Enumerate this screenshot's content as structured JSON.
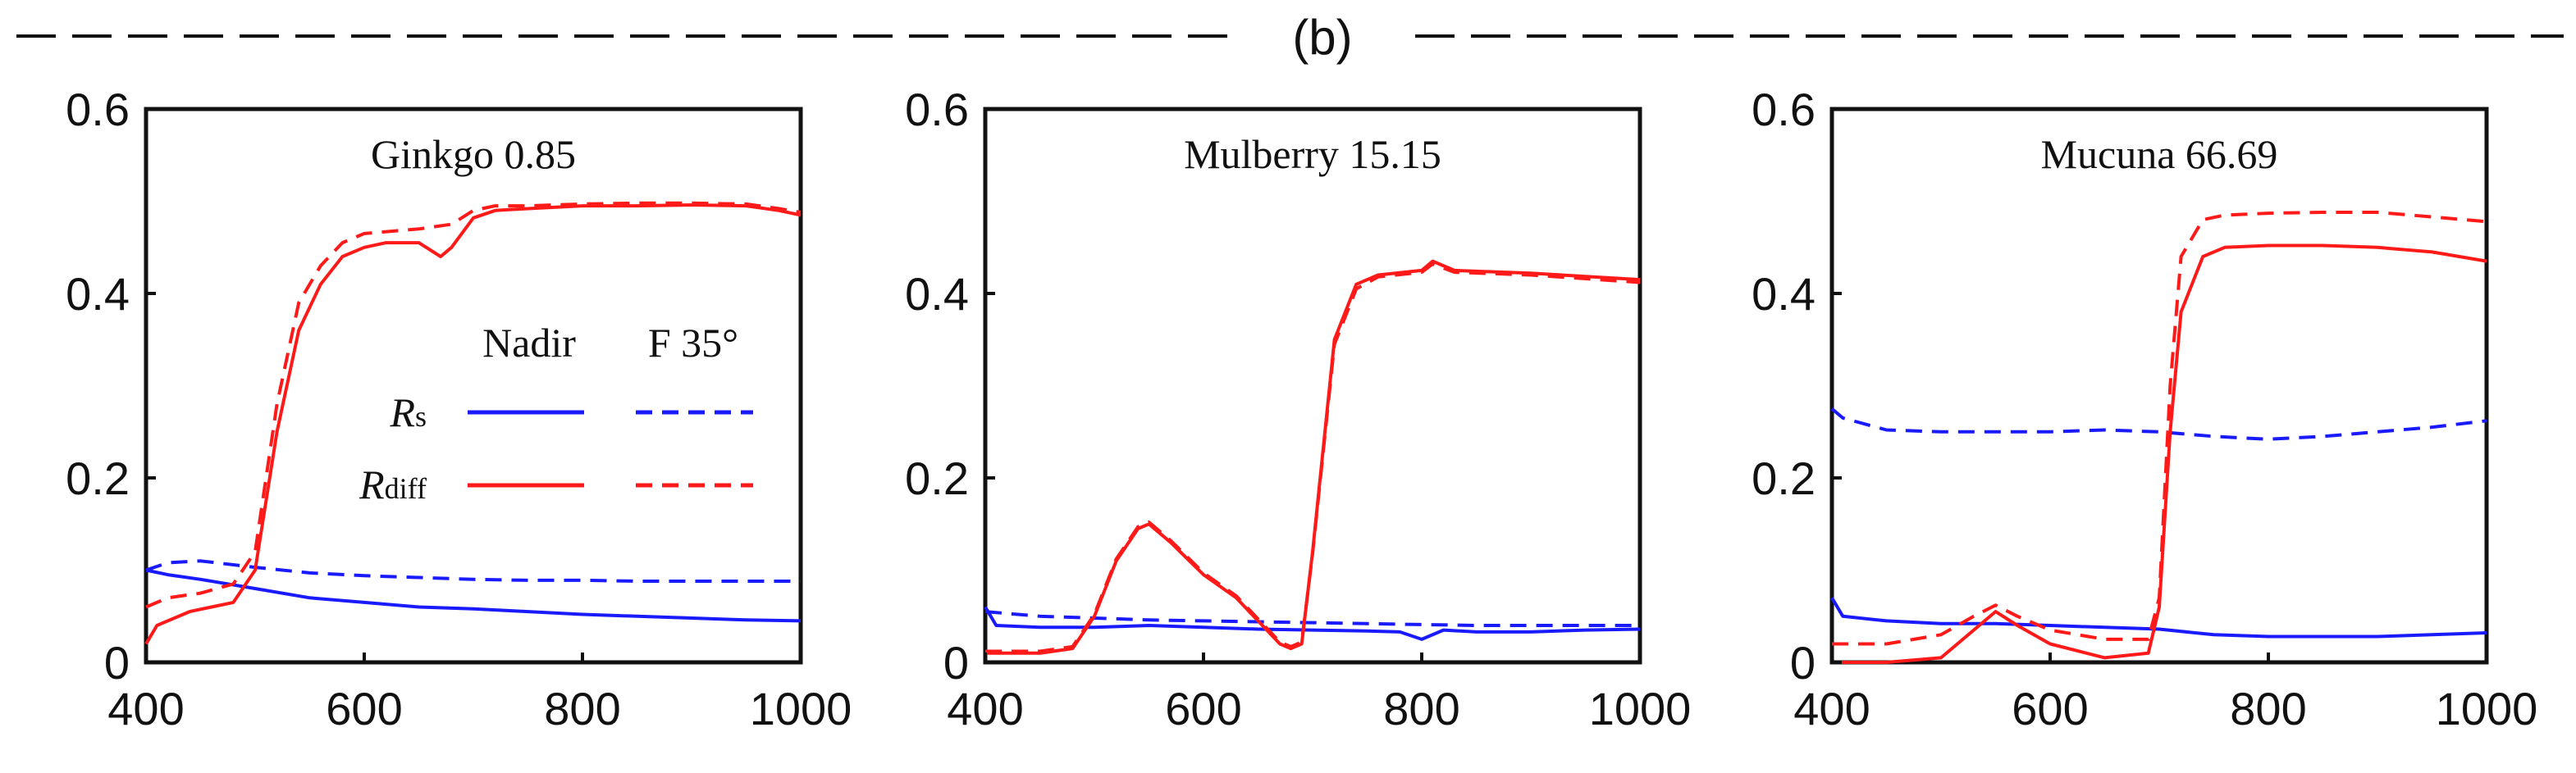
{
  "figure": {
    "panel_label": "(b)"
  },
  "legend": {
    "col_nadir": "Nadir",
    "col_f35": "F 35°",
    "rs_symbol": "R",
    "rs_sub": "s",
    "rdiff_symbol": "R",
    "rdiff_sub": "diff"
  },
  "colors": {
    "rs": "#1a1aff",
    "rdiff": "#ff1a1a",
    "axis": "#111111"
  },
  "chart_data": [
    {
      "type": "line",
      "title": "Ginkgo 0.85",
      "xlim": [
        400,
        1000
      ],
      "ylim": [
        0,
        0.6
      ],
      "xticks": [
        "400",
        "600",
        "800",
        "1000"
      ],
      "yticks": [
        "0",
        "0.2",
        "0.4",
        "0.6"
      ],
      "series": [
        {
          "name": "Rs Nadir",
          "x": [
            400,
            420,
            450,
            500,
            550,
            600,
            650,
            700,
            750,
            800,
            850,
            900,
            950,
            1000
          ],
          "y": [
            0.1,
            0.095,
            0.09,
            0.08,
            0.07,
            0.065,
            0.06,
            0.058,
            0.055,
            0.052,
            0.05,
            0.048,
            0.046,
            0.045
          ]
        },
        {
          "name": "Rs F 35°",
          "x": [
            400,
            420,
            450,
            500,
            550,
            600,
            650,
            700,
            750,
            800,
            850,
            900,
            950,
            1000
          ],
          "y": [
            0.1,
            0.108,
            0.11,
            0.103,
            0.097,
            0.094,
            0.092,
            0.09,
            0.089,
            0.089,
            0.088,
            0.088,
            0.088,
            0.088
          ]
        },
        {
          "name": "Rdiff Nadir",
          "x": [
            400,
            410,
            440,
            460,
            480,
            500,
            520,
            540,
            560,
            580,
            600,
            620,
            650,
            670,
            680,
            700,
            720,
            750,
            800,
            850,
            900,
            950,
            980,
            1000
          ],
          "y": [
            0.02,
            0.04,
            0.055,
            0.06,
            0.065,
            0.1,
            0.25,
            0.36,
            0.41,
            0.44,
            0.45,
            0.455,
            0.455,
            0.44,
            0.45,
            0.482,
            0.49,
            0.492,
            0.495,
            0.495,
            0.496,
            0.495,
            0.49,
            0.485
          ]
        },
        {
          "name": "Rdiff F 35°",
          "x": [
            400,
            420,
            450,
            480,
            500,
            520,
            540,
            560,
            580,
            600,
            650,
            680,
            700,
            720,
            750,
            800,
            850,
            900,
            950,
            980,
            1000
          ],
          "y": [
            0.06,
            0.07,
            0.075,
            0.085,
            0.12,
            0.28,
            0.39,
            0.43,
            0.455,
            0.465,
            0.47,
            0.475,
            0.49,
            0.495,
            0.495,
            0.497,
            0.498,
            0.498,
            0.497,
            0.492,
            0.488
          ]
        }
      ]
    },
    {
      "type": "line",
      "title": "Mulberry 15.15",
      "xlim": [
        400,
        1000
      ],
      "ylim": [
        0,
        0.6
      ],
      "xticks": [
        "400",
        "600",
        "800",
        "1000"
      ],
      "yticks": [
        "0",
        "0.2",
        "0.4",
        "0.6"
      ],
      "series": [
        {
          "name": "Rs Nadir",
          "x": [
            400,
            410,
            450,
            500,
            550,
            600,
            650,
            700,
            750,
            780,
            800,
            820,
            850,
            900,
            950,
            1000
          ],
          "y": [
            0.06,
            0.04,
            0.038,
            0.038,
            0.04,
            0.038,
            0.036,
            0.035,
            0.034,
            0.033,
            0.025,
            0.035,
            0.033,
            0.033,
            0.035,
            0.036
          ]
        },
        {
          "name": "Rs F 35°",
          "x": [
            400,
            450,
            500,
            550,
            600,
            650,
            700,
            750,
            800,
            850,
            900,
            950,
            1000
          ],
          "y": [
            0.055,
            0.05,
            0.048,
            0.046,
            0.045,
            0.044,
            0.043,
            0.042,
            0.041,
            0.04,
            0.04,
            0.04,
            0.04
          ]
        },
        {
          "name": "Rdiff Nadir",
          "x": [
            400,
            450,
            480,
            500,
            520,
            540,
            550,
            570,
            600,
            630,
            650,
            670,
            680,
            690,
            700,
            720,
            740,
            760,
            800,
            810,
            830,
            900,
            1000
          ],
          "y": [
            0.01,
            0.01,
            0.015,
            0.05,
            0.11,
            0.145,
            0.15,
            0.13,
            0.095,
            0.07,
            0.045,
            0.02,
            0.015,
            0.02,
            0.12,
            0.35,
            0.41,
            0.42,
            0.425,
            0.435,
            0.425,
            0.422,
            0.415
          ]
        },
        {
          "name": "Rdiff F 35°",
          "x": [
            400,
            450,
            480,
            500,
            520,
            540,
            550,
            570,
            600,
            630,
            650,
            670,
            680,
            690,
            700,
            720,
            740,
            760,
            800,
            810,
            830,
            900,
            1000
          ],
          "y": [
            0.012,
            0.012,
            0.017,
            0.052,
            0.112,
            0.147,
            0.152,
            0.132,
            0.097,
            0.072,
            0.047,
            0.022,
            0.017,
            0.022,
            0.118,
            0.345,
            0.405,
            0.418,
            0.423,
            0.432,
            0.423,
            0.42,
            0.412
          ]
        }
      ]
    },
    {
      "type": "line",
      "title": "Mucuna 66.69",
      "xlim": [
        400,
        1000
      ],
      "ylim": [
        0,
        0.6
      ],
      "xticks": [
        "400",
        "600",
        "800",
        "1000"
      ],
      "yticks": [
        "0",
        "0.2",
        "0.4",
        "0.6"
      ],
      "series": [
        {
          "name": "Rs Nadir",
          "x": [
            400,
            410,
            450,
            500,
            550,
            600,
            650,
            700,
            750,
            800,
            850,
            900,
            950,
            1000
          ],
          "y": [
            0.07,
            0.05,
            0.045,
            0.042,
            0.042,
            0.04,
            0.038,
            0.036,
            0.03,
            0.028,
            0.028,
            0.028,
            0.03,
            0.032
          ]
        },
        {
          "name": "Rs F 35°",
          "x": [
            400,
            410,
            450,
            500,
            550,
            600,
            650,
            700,
            750,
            800,
            850,
            900,
            950,
            1000
          ],
          "y": [
            0.275,
            0.265,
            0.252,
            0.25,
            0.25,
            0.25,
            0.252,
            0.25,
            0.245,
            0.242,
            0.245,
            0.25,
            0.255,
            0.262
          ]
        },
        {
          "name": "Rdiff Nadir",
          "x": [
            400,
            450,
            500,
            530,
            550,
            570,
            600,
            650,
            690,
            700,
            710,
            720,
            740,
            760,
            800,
            850,
            900,
            950,
            1000
          ],
          "y": [
            0.0,
            0.0,
            0.005,
            0.035,
            0.055,
            0.04,
            0.02,
            0.005,
            0.01,
            0.06,
            0.25,
            0.38,
            0.44,
            0.45,
            0.452,
            0.452,
            0.45,
            0.445,
            0.435
          ]
        },
        {
          "name": "Rdiff F 35°",
          "x": [
            400,
            450,
            500,
            530,
            550,
            570,
            600,
            650,
            690,
            700,
            710,
            720,
            740,
            760,
            800,
            850,
            900,
            950,
            1000
          ],
          "y": [
            0.02,
            0.02,
            0.03,
            0.05,
            0.062,
            0.05,
            0.035,
            0.025,
            0.025,
            0.07,
            0.3,
            0.44,
            0.48,
            0.485,
            0.487,
            0.488,
            0.488,
            0.483,
            0.478
          ]
        }
      ]
    }
  ]
}
